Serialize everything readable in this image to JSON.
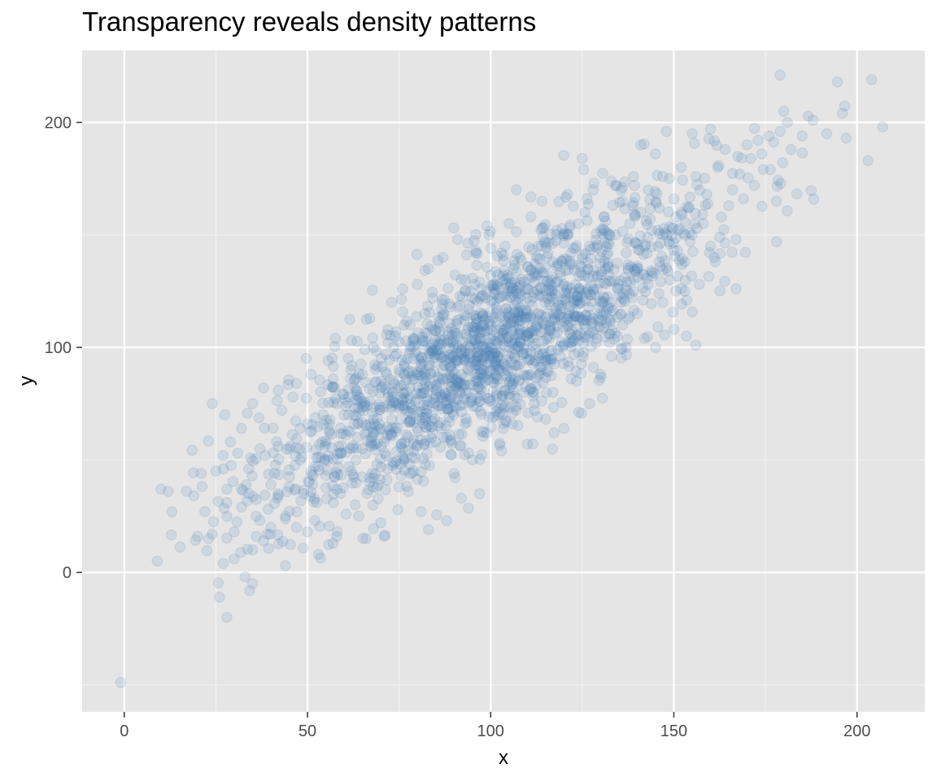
{
  "chart_data": {
    "type": "scatter",
    "title": "Transparency reveals density patterns",
    "xlabel": "x",
    "ylabel": "y",
    "xlim": [
      -11.5,
      218.5
    ],
    "ylim": [
      -62,
      232
    ],
    "x_ticks": [
      0,
      50,
      100,
      150,
      200
    ],
    "y_ticks": [
      0,
      100,
      200
    ],
    "x_tick_labels": [
      "0",
      "50",
      "100",
      "150",
      "200"
    ],
    "y_tick_labels": [
      "0",
      "100",
      "200"
    ],
    "grid": true,
    "legend": "none",
    "point_color": "#4a7db8",
    "point_alpha": 0.15,
    "panel_background": "#e5e5e5",
    "n_points": 2000,
    "trend": {
      "slope": 0.95,
      "intercept": 5,
      "x_mean": 100,
      "x_sd": 30,
      "residual_sd": 20
    },
    "series": [
      {
        "points": [
          [
            -1,
            -49
          ],
          [
            9,
            5
          ],
          [
            10,
            37
          ],
          [
            12,
            36
          ],
          [
            13,
            27
          ],
          [
            17,
            36
          ],
          [
            19,
            34
          ],
          [
            20,
            16
          ],
          [
            21,
            44
          ],
          [
            22,
            27
          ],
          [
            23,
            15
          ],
          [
            24,
            17
          ],
          [
            24,
            75
          ],
          [
            25,
            45
          ],
          [
            26,
            -11
          ],
          [
            27,
            52
          ],
          [
            27,
            4
          ],
          [
            28,
            37
          ],
          [
            28,
            31
          ],
          [
            28,
            -20
          ],
          [
            29,
            58
          ],
          [
            30,
            6
          ],
          [
            30,
            18
          ],
          [
            31,
            53
          ],
          [
            32,
            64
          ],
          [
            32,
            37
          ],
          [
            32,
            29
          ],
          [
            33,
            -2
          ],
          [
            34,
            35
          ],
          [
            34,
            46
          ],
          [
            35,
            75
          ],
          [
            35,
            10
          ],
          [
            35,
            -5
          ],
          [
            36,
            25
          ],
          [
            36,
            16
          ],
          [
            37,
            23
          ],
          [
            37,
            55
          ],
          [
            38,
            14
          ],
          [
            38,
            82
          ],
          [
            39,
            17
          ],
          [
            40,
            20
          ],
          [
            40,
            39
          ],
          [
            41,
            44
          ],
          [
            42,
            56
          ],
          [
            42,
            35
          ],
          [
            43,
            72
          ],
          [
            44,
            3
          ],
          [
            44,
            25
          ],
          [
            45,
            55
          ],
          [
            45,
            38
          ],
          [
            46,
            78
          ],
          [
            47,
            84
          ],
          [
            47,
            20
          ],
          [
            48,
            50
          ],
          [
            48,
            64
          ],
          [
            49,
            35
          ],
          [
            50,
            66
          ],
          [
            50,
            18
          ],
          [
            51,
            45
          ],
          [
            51,
            88
          ],
          [
            52,
            23
          ],
          [
            53,
            8
          ],
          [
            54,
            58
          ],
          [
            55,
            43
          ],
          [
            56,
            62
          ],
          [
            57,
            86
          ],
          [
            57,
            13
          ],
          [
            58,
            75
          ],
          [
            59,
            53
          ],
          [
            59,
            35
          ],
          [
            60,
            70
          ],
          [
            61,
            63
          ],
          [
            62,
            103
          ],
          [
            62,
            45
          ],
          [
            63,
            30
          ],
          [
            64,
            78
          ],
          [
            64,
            25
          ],
          [
            65,
            88
          ],
          [
            65,
            55
          ],
          [
            66,
            15
          ],
          [
            67,
            40
          ],
          [
            67,
            113
          ],
          [
            68,
            68
          ],
          [
            68,
            100
          ],
          [
            69,
            48
          ],
          [
            70,
            22
          ],
          [
            70,
            85
          ],
          [
            70,
            82
          ],
          [
            71,
            58
          ],
          [
            71,
            16
          ],
          [
            72,
            78
          ],
          [
            73,
            120
          ],
          [
            73,
            68
          ],
          [
            74,
            105
          ],
          [
            75,
            38
          ],
          [
            75,
            90
          ],
          [
            76,
            126
          ],
          [
            76,
            55
          ],
          [
            77,
            72
          ],
          [
            78,
            82
          ],
          [
            78,
            110
          ],
          [
            79,
            45
          ],
          [
            79,
            95
          ],
          [
            80,
            128
          ],
          [
            80,
            64
          ],
          [
            81,
            27
          ],
          [
            82,
            88
          ],
          [
            82,
            115
          ],
          [
            83,
            19
          ],
          [
            83,
            135
          ],
          [
            84,
            70
          ],
          [
            84,
            98
          ],
          [
            85,
            78
          ],
          [
            85,
            58
          ],
          [
            86,
            104
          ],
          [
            87,
            140
          ],
          [
            87,
            86
          ],
          [
            88,
            23
          ],
          [
            88,
            60
          ],
          [
            89,
            118
          ],
          [
            89,
            92
          ],
          [
            90,
            76
          ],
          [
            90,
            44
          ],
          [
            91,
            148
          ],
          [
            91,
            105
          ],
          [
            92,
            33
          ],
          [
            92,
            88
          ],
          [
            93,
            130
          ],
          [
            93,
            66
          ],
          [
            94,
            80
          ],
          [
            94,
            95
          ],
          [
            95,
            122
          ],
          [
            95,
            50
          ],
          [
            96,
            142
          ],
          [
            96,
            100
          ],
          [
            97,
            76
          ],
          [
            97,
            35
          ],
          [
            98,
            110
          ],
          [
            98,
            90
          ],
          [
            99,
            154
          ],
          [
            99,
            62
          ],
          [
            100,
            132
          ],
          [
            100,
            104
          ],
          [
            101,
            86
          ],
          [
            101,
            120
          ],
          [
            102,
            70
          ],
          [
            102,
            96
          ],
          [
            103,
            142
          ],
          [
            103,
            54
          ],
          [
            104,
            112
          ],
          [
            104,
            88
          ],
          [
            105,
            155
          ],
          [
            105,
            100
          ],
          [
            106,
            126
          ],
          [
            106,
            66
          ],
          [
            107,
            92
          ],
          [
            107,
            170
          ],
          [
            108,
            108
          ],
          [
            108,
            140
          ],
          [
            109,
            80
          ],
          [
            110,
            122
          ],
          [
            110,
            57
          ],
          [
            111,
            98
          ],
          [
            111,
            158
          ],
          [
            112,
            132
          ],
          [
            112,
            72
          ],
          [
            113,
            112
          ],
          [
            113,
            145
          ],
          [
            114,
            90
          ],
          [
            114,
            165
          ],
          [
            115,
            125
          ],
          [
            115,
            68
          ],
          [
            116,
            104
          ],
          [
            117,
            138
          ],
          [
            117,
            80
          ],
          [
            118,
            115
          ],
          [
            118,
            152
          ],
          [
            119,
            96
          ],
          [
            120,
            128
          ],
          [
            120,
            64
          ],
          [
            121,
            168
          ],
          [
            121,
            110
          ],
          [
            122,
            142
          ],
          [
            122,
            86
          ],
          [
            123,
            120
          ],
          [
            124,
            155
          ],
          [
            124,
            98
          ],
          [
            125,
            132
          ],
          [
            125,
            184
          ],
          [
            126,
            112
          ],
          [
            127,
            145
          ],
          [
            127,
            75
          ],
          [
            128,
            125
          ],
          [
            128,
            170
          ],
          [
            129,
            104
          ],
          [
            130,
            140
          ],
          [
            130,
            88
          ],
          [
            131,
            158
          ],
          [
            132,
            118
          ],
          [
            132,
            136
          ],
          [
            133,
            96
          ],
          [
            134,
            150
          ],
          [
            134,
            172
          ],
          [
            135,
            128
          ],
          [
            136,
            110
          ],
          [
            136,
            165
          ],
          [
            137,
            142
          ],
          [
            137,
            100
          ],
          [
            138,
            155
          ],
          [
            139,
            125
          ],
          [
            139,
            176
          ],
          [
            140,
            135
          ],
          [
            140,
            115
          ],
          [
            141,
            160
          ],
          [
            141,
            190
          ],
          [
            142,
            145
          ],
          [
            142,
            104
          ],
          [
            143,
            170
          ],
          [
            143,
            128
          ],
          [
            144,
            152
          ],
          [
            145,
            100
          ],
          [
            145,
            186
          ],
          [
            146,
            138
          ],
          [
            146,
            162
          ],
          [
            147,
            120
          ],
          [
            147,
            176
          ],
          [
            148,
            150
          ],
          [
            148,
            196
          ],
          [
            149,
            130
          ],
          [
            150,
            166
          ],
          [
            150,
            108
          ],
          [
            151,
            143
          ],
          [
            152,
            180
          ],
          [
            152,
            160
          ],
          [
            153,
            125
          ],
          [
            153,
            138
          ],
          [
            154,
            162
          ],
          [
            155,
            195
          ],
          [
            155,
            150
          ],
          [
            156,
            101
          ],
          [
            156,
            176
          ],
          [
            157,
            128
          ],
          [
            158,
            155
          ],
          [
            159,
            168
          ],
          [
            160,
            145
          ],
          [
            160,
            197
          ],
          [
            161,
            140
          ],
          [
            162,
            180
          ],
          [
            163,
            158
          ],
          [
            164,
            188
          ],
          [
            165,
            163
          ],
          [
            166,
            170
          ],
          [
            167,
            126
          ],
          [
            167,
            148
          ],
          [
            168,
            177
          ],
          [
            169,
            166
          ],
          [
            170,
            190
          ],
          [
            171,
            184
          ],
          [
            172,
            172
          ],
          [
            173,
            192
          ],
          [
            174,
            186
          ],
          [
            176,
            194
          ],
          [
            178,
            165
          ],
          [
            178,
            147
          ],
          [
            179,
            221
          ],
          [
            179,
            196
          ],
          [
            180,
            205
          ],
          [
            181,
            200
          ],
          [
            182,
            188
          ],
          [
            185,
            194
          ],
          [
            188,
            201
          ],
          [
            196,
            204
          ],
          [
            197,
            193
          ],
          [
            203,
            183
          ],
          [
            204,
            219
          ],
          [
            207,
            198
          ]
        ]
      }
    ]
  }
}
